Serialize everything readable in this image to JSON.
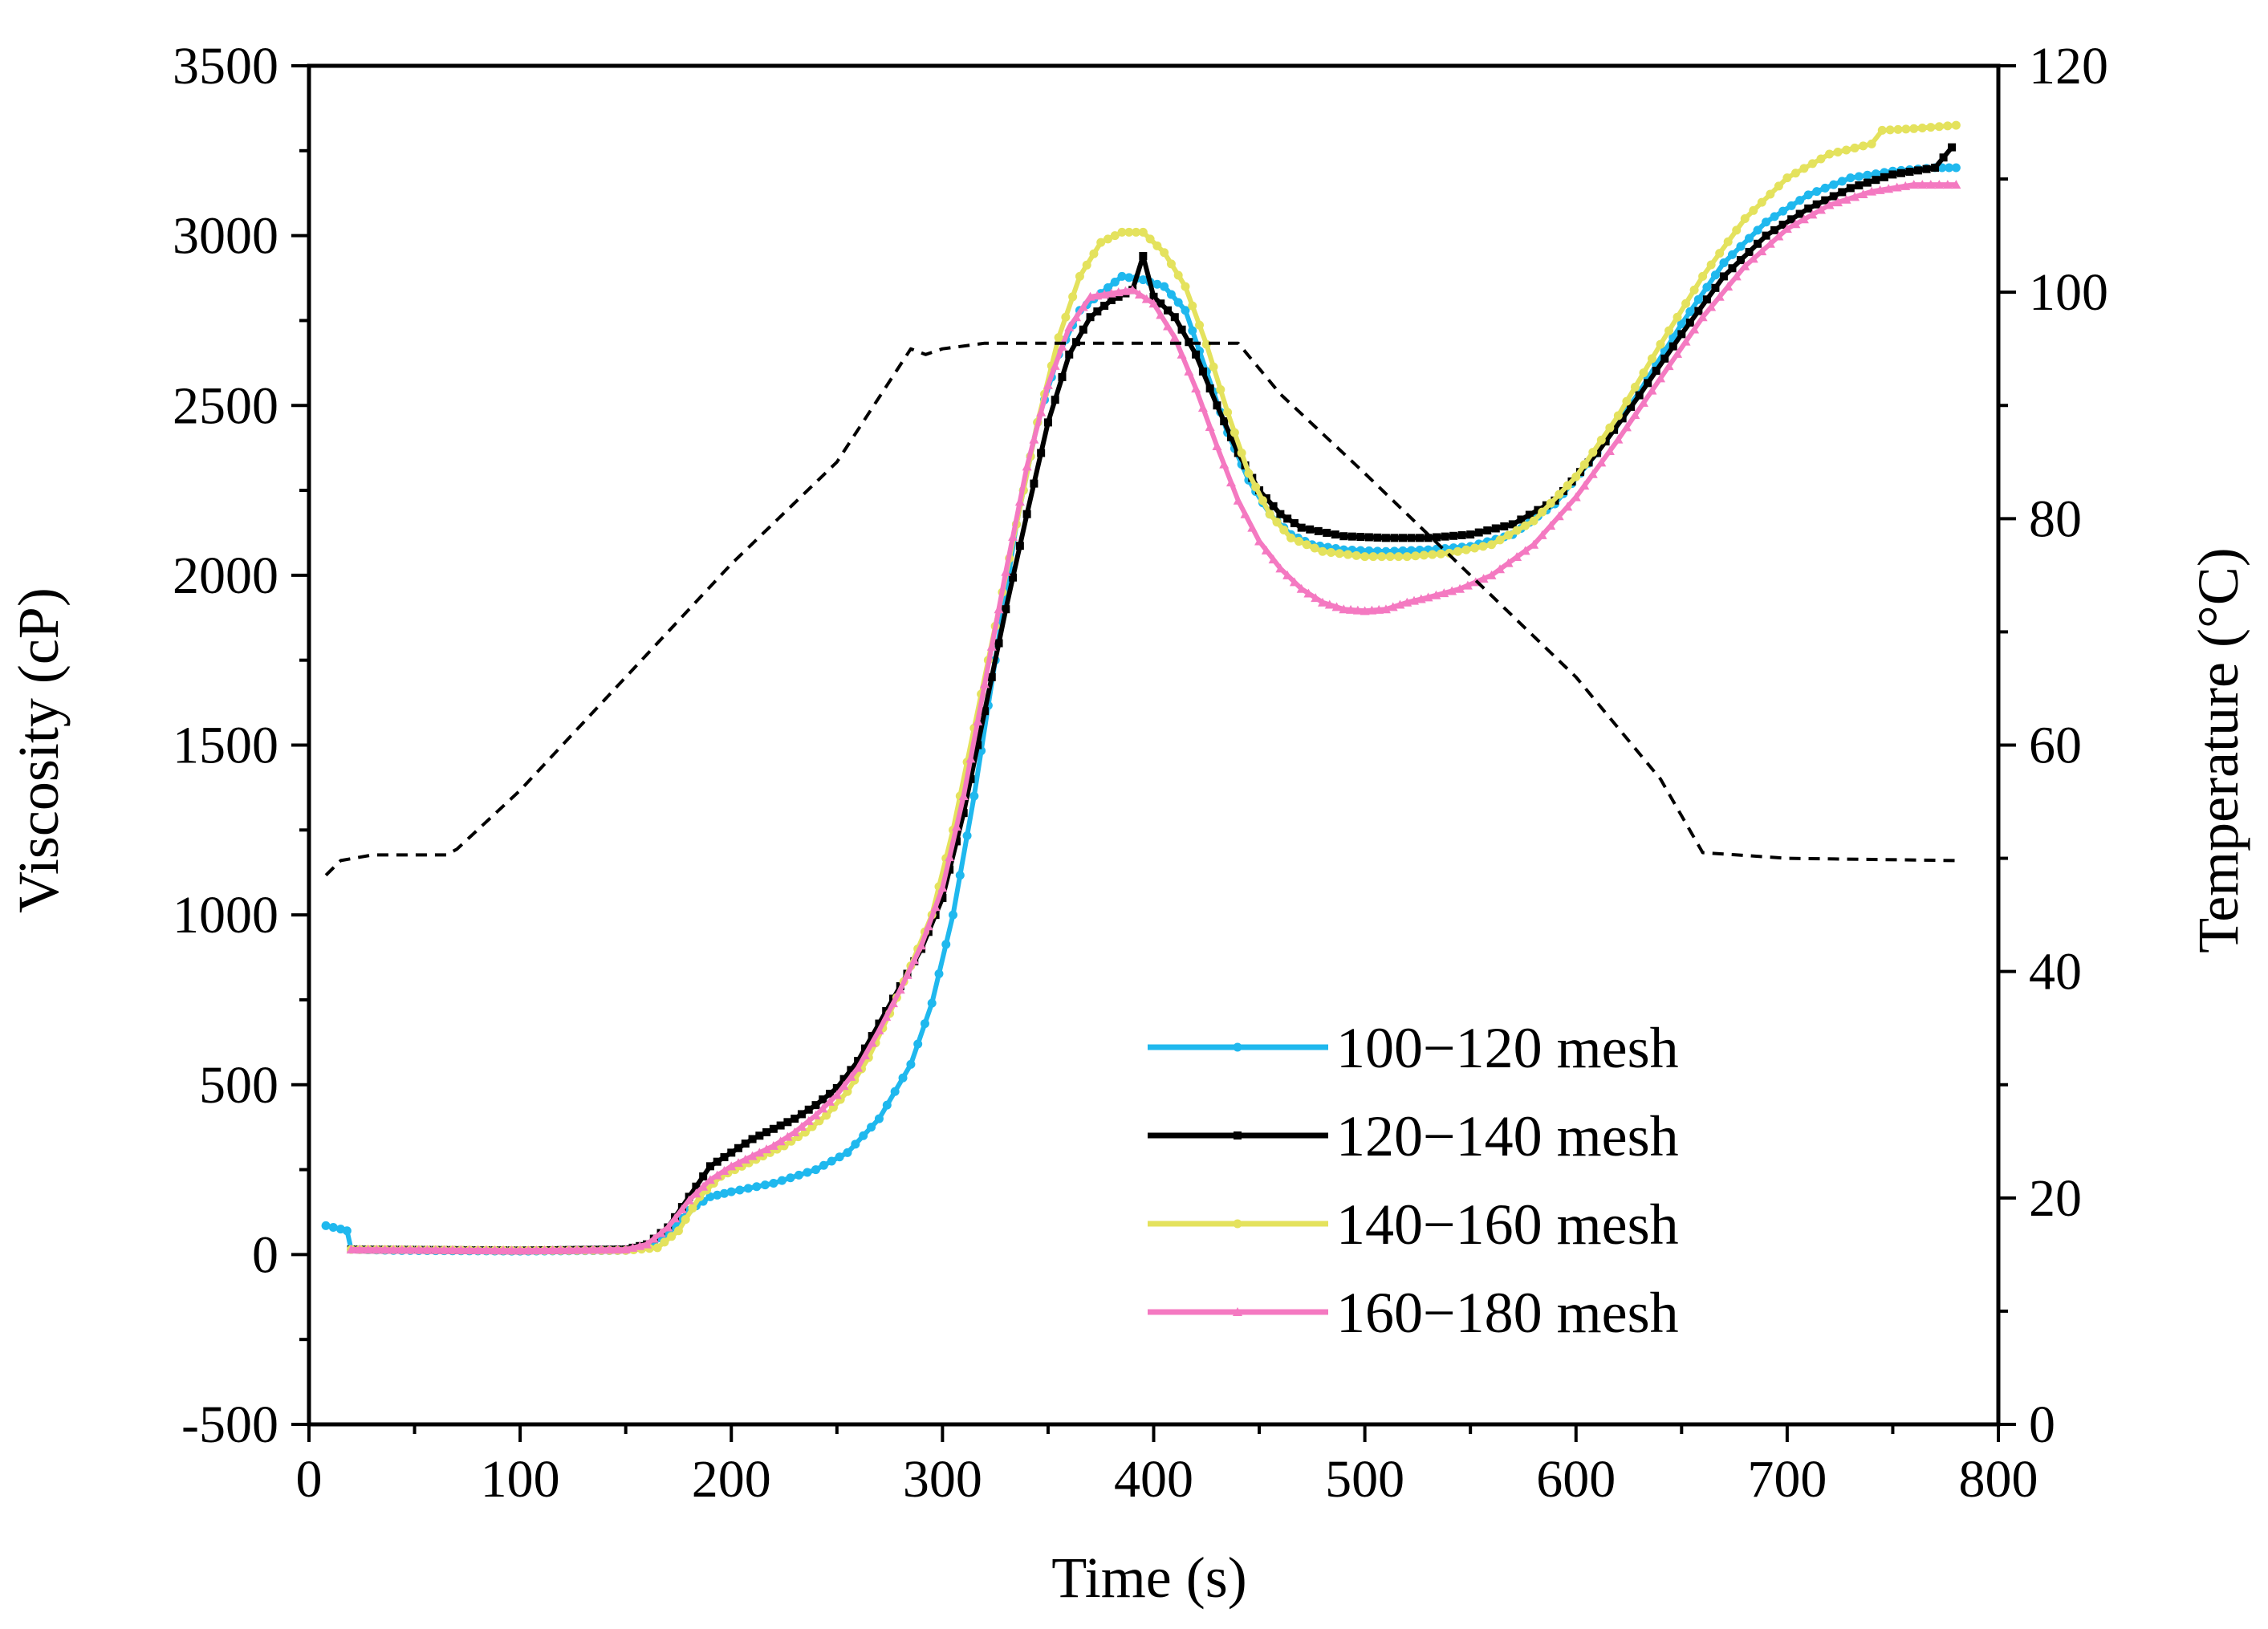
{
  "chart_data": {
    "type": "line",
    "title": "",
    "xlabel": "Time (s)",
    "ylabel": "Viscosity (cP)",
    "y2label": "Temperature (°C)",
    "xlim": [
      0,
      800
    ],
    "ylim": [
      -500,
      3500
    ],
    "y2lim": [
      0,
      120
    ],
    "xticks": [
      "0",
      "100",
      "200",
      "300",
      "400",
      "500",
      "600",
      "700",
      "800"
    ],
    "yticks": [
      "-500",
      "0",
      "500",
      "1000",
      "1500",
      "2000",
      "2500",
      "3000",
      "3500"
    ],
    "y2ticks": [
      "0",
      "20",
      "40",
      "60",
      "80",
      "100",
      "120"
    ],
    "grid": false,
    "legend_position": "bottom-right",
    "series": [
      {
        "name": "100−120 mesh",
        "color": "#1fb8ee",
        "marker": "circle",
        "axis": "left",
        "points": [
          [
            8,
            85
          ],
          [
            15,
            75
          ],
          [
            18,
            70
          ],
          [
            20,
            15
          ],
          [
            40,
            12
          ],
          [
            100,
            10
          ],
          [
            150,
            12
          ],
          [
            160,
            25
          ],
          [
            170,
            60
          ],
          [
            180,
            130
          ],
          [
            190,
            170
          ],
          [
            200,
            185
          ],
          [
            220,
            210
          ],
          [
            240,
            250
          ],
          [
            255,
            300
          ],
          [
            270,
            400
          ],
          [
            285,
            560
          ],
          [
            295,
            740
          ],
          [
            305,
            1000
          ],
          [
            315,
            1350
          ],
          [
            325,
            1750
          ],
          [
            335,
            2150
          ],
          [
            345,
            2450
          ],
          [
            355,
            2650
          ],
          [
            365,
            2780
          ],
          [
            375,
            2830
          ],
          [
            385,
            2880
          ],
          [
            395,
            2870
          ],
          [
            405,
            2850
          ],
          [
            415,
            2780
          ],
          [
            425,
            2600
          ],
          [
            435,
            2420
          ],
          [
            445,
            2280
          ],
          [
            455,
            2180
          ],
          [
            465,
            2120
          ],
          [
            475,
            2090
          ],
          [
            490,
            2075
          ],
          [
            510,
            2070
          ],
          [
            530,
            2075
          ],
          [
            550,
            2085
          ],
          [
            570,
            2120
          ],
          [
            590,
            2210
          ],
          [
            610,
            2360
          ],
          [
            630,
            2540
          ],
          [
            650,
            2740
          ],
          [
            670,
            2920
          ],
          [
            690,
            3040
          ],
          [
            710,
            3120
          ],
          [
            730,
            3170
          ],
          [
            750,
            3190
          ],
          [
            770,
            3200
          ],
          [
            780,
            3200
          ]
        ]
      },
      {
        "name": "120−140 mesh",
        "color": "#000000",
        "marker": "square",
        "axis": "left",
        "points": [
          [
            20,
            15
          ],
          [
            100,
            12
          ],
          [
            150,
            15
          ],
          [
            160,
            30
          ],
          [
            170,
            80
          ],
          [
            180,
            170
          ],
          [
            190,
            260
          ],
          [
            200,
            300
          ],
          [
            210,
            340
          ],
          [
            220,
            370
          ],
          [
            230,
            400
          ],
          [
            240,
            440
          ],
          [
            250,
            490
          ],
          [
            260,
            570
          ],
          [
            270,
            680
          ],
          [
            280,
            790
          ],
          [
            290,
            900
          ],
          [
            300,
            1050
          ],
          [
            310,
            1300
          ],
          [
            320,
            1600
          ],
          [
            330,
            1900
          ],
          [
            340,
            2180
          ],
          [
            350,
            2450
          ],
          [
            360,
            2650
          ],
          [
            370,
            2760
          ],
          [
            380,
            2810
          ],
          [
            390,
            2840
          ],
          [
            395,
            2940
          ],
          [
            400,
            2820
          ],
          [
            410,
            2760
          ],
          [
            420,
            2650
          ],
          [
            430,
            2500
          ],
          [
            440,
            2360
          ],
          [
            450,
            2250
          ],
          [
            460,
            2180
          ],
          [
            470,
            2140
          ],
          [
            490,
            2115
          ],
          [
            510,
            2110
          ],
          [
            530,
            2110
          ],
          [
            550,
            2120
          ],
          [
            570,
            2150
          ],
          [
            590,
            2220
          ],
          [
            610,
            2360
          ],
          [
            630,
            2530
          ],
          [
            650,
            2710
          ],
          [
            670,
            2880
          ],
          [
            690,
            3000
          ],
          [
            710,
            3080
          ],
          [
            730,
            3140
          ],
          [
            750,
            3180
          ],
          [
            770,
            3200
          ],
          [
            778,
            3260
          ]
        ]
      },
      {
        "name": "140−160 mesh",
        "color": "#e4e25d",
        "marker": "circle",
        "axis": "left",
        "points": [
          [
            20,
            15
          ],
          [
            100,
            12
          ],
          [
            150,
            12
          ],
          [
            165,
            20
          ],
          [
            175,
            70
          ],
          [
            185,
            170
          ],
          [
            195,
            230
          ],
          [
            205,
            260
          ],
          [
            215,
            290
          ],
          [
            225,
            320
          ],
          [
            235,
            360
          ],
          [
            245,
            410
          ],
          [
            255,
            480
          ],
          [
            265,
            580
          ],
          [
            275,
            710
          ],
          [
            285,
            850
          ],
          [
            295,
            1000
          ],
          [
            305,
            1250
          ],
          [
            315,
            1550
          ],
          [
            325,
            1850
          ],
          [
            335,
            2150
          ],
          [
            345,
            2450
          ],
          [
            355,
            2700
          ],
          [
            365,
            2880
          ],
          [
            375,
            2980
          ],
          [
            385,
            3010
          ],
          [
            395,
            3010
          ],
          [
            405,
            2950
          ],
          [
            415,
            2850
          ],
          [
            425,
            2680
          ],
          [
            435,
            2480
          ],
          [
            445,
            2300
          ],
          [
            455,
            2180
          ],
          [
            465,
            2110
          ],
          [
            480,
            2070
          ],
          [
            500,
            2055
          ],
          [
            520,
            2055
          ],
          [
            540,
            2065
          ],
          [
            560,
            2090
          ],
          [
            580,
            2160
          ],
          [
            600,
            2290
          ],
          [
            620,
            2470
          ],
          [
            640,
            2680
          ],
          [
            660,
            2880
          ],
          [
            680,
            3050
          ],
          [
            700,
            3170
          ],
          [
            720,
            3240
          ],
          [
            740,
            3270
          ],
          [
            745,
            3310
          ],
          [
            760,
            3315
          ],
          [
            780,
            3325
          ]
        ]
      },
      {
        "name": "160−180 mesh",
        "color": "#f479c1",
        "marker": "triangle",
        "axis": "left",
        "points": [
          [
            20,
            15
          ],
          [
            100,
            12
          ],
          [
            150,
            15
          ],
          [
            160,
            30
          ],
          [
            170,
            80
          ],
          [
            180,
            160
          ],
          [
            190,
            220
          ],
          [
            200,
            260
          ],
          [
            210,
            290
          ],
          [
            220,
            320
          ],
          [
            230,
            360
          ],
          [
            240,
            410
          ],
          [
            250,
            470
          ],
          [
            260,
            550
          ],
          [
            270,
            660
          ],
          [
            280,
            780
          ],
          [
            290,
            910
          ],
          [
            300,
            1080
          ],
          [
            310,
            1350
          ],
          [
            320,
            1680
          ],
          [
            330,
            2010
          ],
          [
            340,
            2320
          ],
          [
            350,
            2560
          ],
          [
            360,
            2730
          ],
          [
            370,
            2820
          ],
          [
            380,
            2830
          ],
          [
            390,
            2840
          ],
          [
            400,
            2800
          ],
          [
            410,
            2700
          ],
          [
            420,
            2550
          ],
          [
            430,
            2380
          ],
          [
            440,
            2220
          ],
          [
            450,
            2100
          ],
          [
            460,
            2020
          ],
          [
            470,
            1960
          ],
          [
            480,
            1920
          ],
          [
            490,
            1900
          ],
          [
            500,
            1895
          ],
          [
            510,
            1900
          ],
          [
            520,
            1920
          ],
          [
            530,
            1935
          ],
          [
            545,
            1960
          ],
          [
            560,
            2000
          ],
          [
            580,
            2090
          ],
          [
            600,
            2230
          ],
          [
            620,
            2400
          ],
          [
            640,
            2580
          ],
          [
            660,
            2760
          ],
          [
            680,
            2910
          ],
          [
            700,
            3020
          ],
          [
            720,
            3090
          ],
          [
            740,
            3130
          ],
          [
            760,
            3150
          ],
          [
            780,
            3150
          ]
        ]
      },
      {
        "name": "",
        "color": "#000000",
        "marker": "none",
        "dashed": true,
        "axis": "right",
        "points": [
          [
            8,
            48.5
          ],
          [
            15,
            49.8
          ],
          [
            30,
            50.3
          ],
          [
            65,
            50.3
          ],
          [
            70,
            50.8
          ],
          [
            100,
            56
          ],
          [
            150,
            66
          ],
          [
            200,
            76
          ],
          [
            250,
            85
          ],
          [
            285,
            95
          ],
          [
            292,
            94.5
          ],
          [
            300,
            95
          ],
          [
            320,
            95.5
          ],
          [
            440,
            95.5
          ],
          [
            460,
            91
          ],
          [
            500,
            84
          ],
          [
            550,
            75
          ],
          [
            600,
            66
          ],
          [
            640,
            57
          ],
          [
            660,
            50.5
          ],
          [
            700,
            50
          ],
          [
            780,
            49.8
          ]
        ]
      }
    ]
  }
}
